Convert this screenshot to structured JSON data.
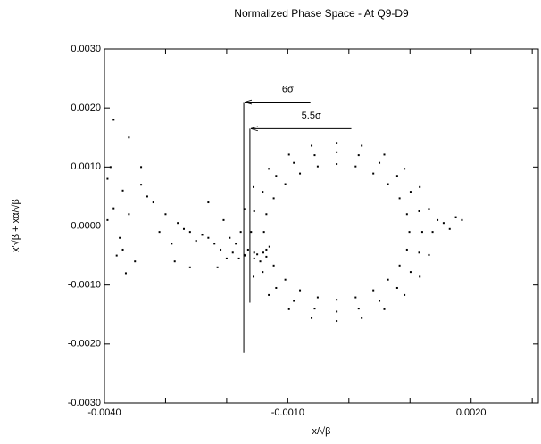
{
  "chart_data": {
    "type": "scatter",
    "title": "Normalized Phase Space - At Q9-D9",
    "xlabel": "x/√β",
    "ylabel": "x'√β + xα/√β",
    "color": "#000000",
    "xlim": [
      -0.004,
      0.0031
    ],
    "ylim": [
      -0.003,
      0.003
    ],
    "xticks": [
      {
        "value": -0.004,
        "label": "-0.0040"
      },
      {
        "value": -0.001,
        "label": "-0.0010"
      },
      {
        "value": 0.002,
        "label": "0.0020"
      }
    ],
    "xticks_minor": [
      -0.003,
      -0.002,
      0,
      0.001,
      0.003
    ],
    "yticks": [
      {
        "value": -0.003,
        "label": "-0.0030"
      },
      {
        "value": -0.002,
        "label": "-0.0020"
      },
      {
        "value": -0.001,
        "label": "-0.0010"
      },
      {
        "value": 0,
        "label": "0.0000"
      },
      {
        "value": 0.001,
        "label": "0.0010"
      },
      {
        "value": 0.002,
        "label": "0.0020"
      },
      {
        "value": 0.003,
        "label": "0.0030"
      }
    ],
    "annotations": [
      {
        "text": "6σ",
        "x": -0.00172,
        "x_from": -0.00063,
        "y": 0.0021,
        "y_bottom": -0.00215
      },
      {
        "text": "5.5σ",
        "x": -0.00162,
        "x_from": 4e-05,
        "y": 0.00165,
        "y_bottom": -0.0013
      }
    ],
    "x": [
      0.0012,
      0.00115,
      0.00101,
      0.00079,
      0.0005,
      0.00016,
      -0.0002,
      -0.00056,
      -0.0009,
      -0.00119,
      -0.00141,
      -0.00155,
      -0.0016,
      -0.00155,
      -0.00141,
      -0.00119,
      -0.0009,
      -0.00056,
      -0.0002,
      0.00016,
      0.0005,
      0.00079,
      0.00101,
      0.00115,
      0.00099,
      0.00095,
      0.00083,
      0.00064,
      0.0004,
      0.00011,
      -0.0002,
      -0.00051,
      -0.0008,
      -0.00104,
      -0.00123,
      -0.00135,
      -0.00139,
      -0.00135,
      -0.00123,
      -0.00104,
      -0.0008,
      -0.00051,
      -0.0002,
      0.00011,
      0.0004,
      0.00064,
      0.00083,
      0.00095,
      0.00137,
      0.00131,
      0.00116,
      0.00091,
      0.00058,
      0.00021,
      -0.0002,
      -0.00061,
      -0.00098,
      -0.00131,
      -0.00156,
      -0.00171,
      -0.00177,
      -0.00171,
      -0.00156,
      -0.00131,
      -0.00098,
      -0.00061,
      -0.0002,
      0.00021,
      0.00058,
      0.00091,
      0.00116,
      0.00131,
      0.00155,
      0.00175,
      0.00185,
      0.00165,
      0.00145,
      -0.0019,
      -0.0018,
      -0.0017,
      -0.00165,
      -0.00155,
      -0.0015,
      -0.00145,
      -0.0014,
      -0.00135,
      -0.0013,
      -0.002,
      -0.0021,
      -0.0022,
      -0.0023,
      -0.0024,
      -0.0025,
      -0.0026,
      -0.0027,
      -0.0028,
      -0.0029,
      -0.003,
      -0.0031,
      -0.0032,
      -0.0033,
      -0.0034,
      -0.0035,
      -0.0036,
      -0.0037,
      -0.0038,
      -0.0039,
      -0.00395,
      -0.00385,
      -0.00375,
      -0.00365,
      -0.0036,
      -0.00385,
      -0.0034,
      -0.00285,
      -0.0026,
      -0.0023,
      -0.00205,
      -0.00195,
      -0.00185,
      -0.00215,
      -0.00395,
      -0.0037
    ],
    "values": [
      -0.0001,
      0.00025,
      0.00058,
      0.00085,
      0.00107,
      0.0012,
      0.00125,
      0.0012,
      0.00107,
      0.00085,
      0.00058,
      0.00025,
      -0.0001,
      -0.00045,
      -0.00078,
      -0.00105,
      -0.00127,
      -0.0014,
      -0.00145,
      -0.0014,
      -0.00127,
      -0.00105,
      -0.00078,
      -0.00045,
      -0.0001,
      0.0002,
      0.00047,
      0.00071,
      0.00089,
      0.00101,
      0.00105,
      0.00101,
      0.00089,
      0.00071,
      0.00047,
      0.0002,
      -0.0001,
      -0.0004,
      -0.00067,
      -0.00091,
      -0.00109,
      -0.00121,
      -0.00125,
      -0.00121,
      -0.00109,
      -0.00091,
      -0.00067,
      -0.0004,
      -0.0001,
      0.00029,
      0.00066,
      0.00097,
      0.00121,
      0.00136,
      0.00141,
      0.00136,
      0.00121,
      0.00097,
      0.00066,
      0.00029,
      -0.0001,
      -0.00049,
      -0.00086,
      -0.00117,
      -0.00141,
      -0.00156,
      -0.00161,
      -0.00156,
      -0.00141,
      -0.00117,
      -0.00086,
      -0.00049,
      5e-05,
      0.00015,
      0.0001,
      -5e-05,
      0.0001,
      -0.00045,
      -0.00055,
      -0.0005,
      -0.0004,
      -0.00055,
      -0.00048,
      -0.0006,
      -0.00045,
      -0.00052,
      -0.00035,
      -0.00055,
      -0.0004,
      -0.0003,
      -0.0002,
      -0.00015,
      -0.00025,
      -0.0001,
      -5e-05,
      5e-05,
      -0.0003,
      0.0002,
      -0.0001,
      0.0004,
      0.0005,
      0.0007,
      -0.0006,
      0.0002,
      0.0006,
      -0.0005,
      0.001,
      0.0008,
      0.0003,
      -0.0002,
      -0.0008,
      0.0015,
      0.0018,
      0.001,
      -0.0006,
      -0.0007,
      0.0004,
      0.0001,
      -0.0002,
      -0.0003,
      -0.0007,
      0.0001,
      -0.0004
    ]
  }
}
